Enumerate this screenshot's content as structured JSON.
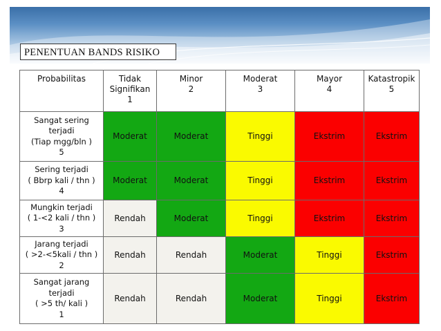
{
  "slide": {
    "title": "PENENTUAN BANDS RISIKO"
  },
  "colors": {
    "green": "#13a813",
    "yellow": "#fafa00",
    "red": "#fb0000",
    "light": "#f3f2ed"
  },
  "header": {
    "probabilitas": "Probabilitas",
    "impacts": [
      {
        "line1": "Tidak",
        "line2": "Signifikan",
        "line3": "1"
      },
      {
        "line1": "Minor",
        "line2": "2"
      },
      {
        "line1": "Moderat",
        "line2": "3"
      },
      {
        "line1": "Mayor",
        "line2": "4"
      },
      {
        "line1": "Katastropik",
        "line2": "5"
      }
    ]
  },
  "rows": [
    {
      "prob": [
        "Sangat sering",
        "terjadi",
        "(Tiap mgg/bln )",
        "5"
      ],
      "cells": [
        {
          "text": "Moderat",
          "level": "green"
        },
        {
          "text": "Moderat",
          "level": "green"
        },
        {
          "text": "Tinggi",
          "level": "yellow"
        },
        {
          "text": "Ekstrim",
          "level": "red"
        },
        {
          "text": "Ekstrim",
          "level": "red"
        }
      ]
    },
    {
      "prob": [
        "Sering terjadi",
        "( Bbrp kali / thn )",
        "4"
      ],
      "cells": [
        {
          "text": "Moderat",
          "level": "green"
        },
        {
          "text": "Moderat",
          "level": "green"
        },
        {
          "text": "Tinggi",
          "level": "yellow"
        },
        {
          "text": "Ekstrim",
          "level": "red"
        },
        {
          "text": "Ekstrim",
          "level": "red"
        }
      ]
    },
    {
      "prob": [
        "Mungkin terjadi",
        "( 1-<2 kali / thn )",
        "3"
      ],
      "cells": [
        {
          "text": "Rendah",
          "level": "light"
        },
        {
          "text": "Moderat",
          "level": "green"
        },
        {
          "text": "Tinggi",
          "level": "yellow"
        },
        {
          "text": "Ekstrim",
          "level": "red"
        },
        {
          "text": "Ekstrim",
          "level": "red"
        }
      ]
    },
    {
      "prob": [
        "Jarang terjadi",
        "( >2-<5kali / thn )",
        "2"
      ],
      "cells": [
        {
          "text": "Rendah",
          "level": "light"
        },
        {
          "text": "Rendah",
          "level": "light"
        },
        {
          "text": "Moderat",
          "level": "green"
        },
        {
          "text": "Tinggi",
          "level": "yellow"
        },
        {
          "text": "Ekstrim",
          "level": "red"
        }
      ]
    },
    {
      "prob": [
        "Sangat jarang",
        "terjadi",
        "( >5 th/ kali )",
        "1"
      ],
      "cells": [
        {
          "text": "Rendah",
          "level": "light"
        },
        {
          "text": "Rendah",
          "level": "light"
        },
        {
          "text": "Moderat",
          "level": "green"
        },
        {
          "text": "Tinggi",
          "level": "yellow"
        },
        {
          "text": "Ekstrim",
          "level": "red"
        }
      ]
    }
  ]
}
